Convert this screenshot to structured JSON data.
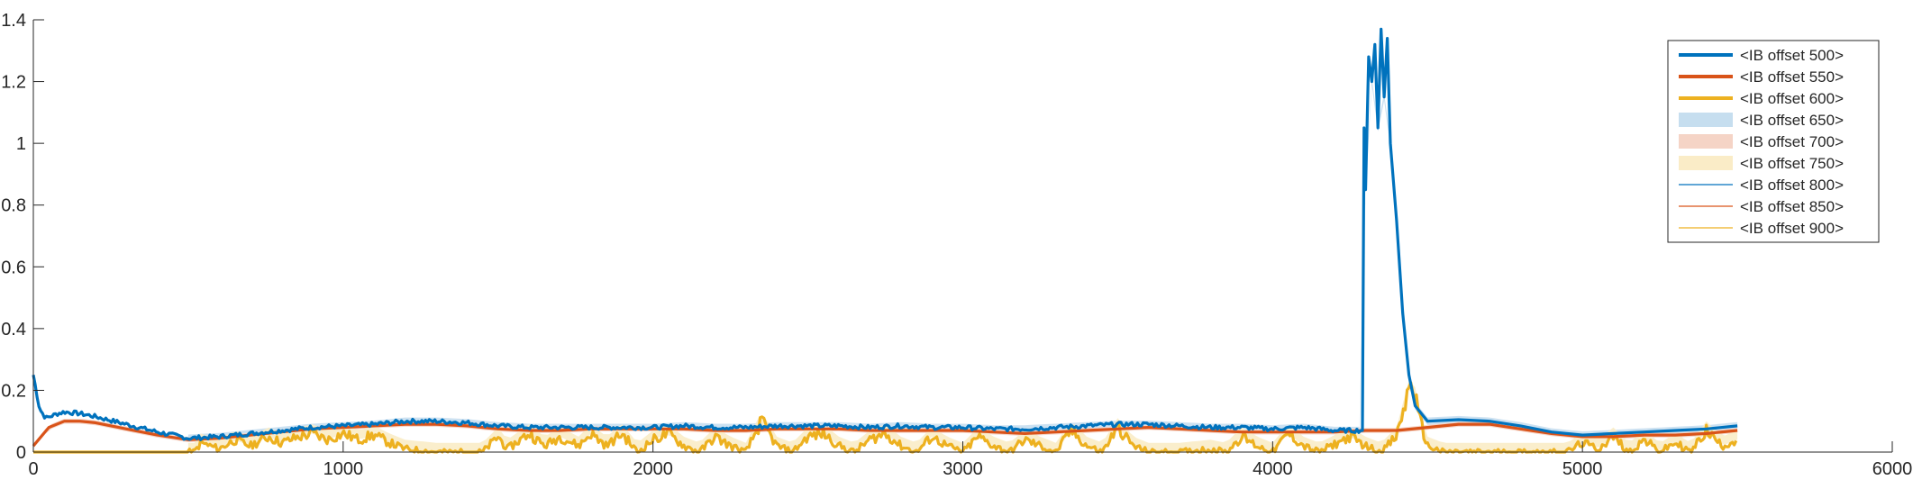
{
  "chart_data": {
    "type": "line",
    "title": "",
    "xlabel": "",
    "ylabel": "",
    "xlim": [
      0,
      6000
    ],
    "ylim": [
      0,
      1.4
    ],
    "xticks": [
      0,
      1000,
      2000,
      3000,
      4000,
      5000,
      6000
    ],
    "yticks": [
      0,
      0.2,
      0.4,
      0.6,
      0.8,
      1,
      1.2,
      1.4
    ],
    "xtick_labels": [
      "0",
      "1000",
      "2000",
      "3000",
      "4000",
      "5000",
      "6000"
    ],
    "ytick_labels": [
      "0",
      "0.2",
      "0.4",
      "0.6",
      "0.8",
      "1",
      "1.2",
      "1.4"
    ],
    "grid": false,
    "legend_position": "top-right",
    "series": [
      {
        "name": "<IB offset 500>",
        "color": "#0072BD",
        "style": "thick-line",
        "points": [
          [
            0,
            0.25
          ],
          [
            20,
            0.14
          ],
          [
            40,
            0.11
          ],
          [
            80,
            0.125
          ],
          [
            100,
            0.13
          ],
          [
            150,
            0.125
          ],
          [
            200,
            0.115
          ],
          [
            300,
            0.09
          ],
          [
            400,
            0.065
          ],
          [
            500,
            0.045
          ],
          [
            600,
            0.05
          ],
          [
            700,
            0.06
          ],
          [
            800,
            0.07
          ],
          [
            900,
            0.08
          ],
          [
            1000,
            0.085
          ],
          [
            1100,
            0.09
          ],
          [
            1200,
            0.1
          ],
          [
            1300,
            0.1
          ],
          [
            1400,
            0.095
          ],
          [
            1500,
            0.085
          ],
          [
            1600,
            0.08
          ],
          [
            1700,
            0.08
          ],
          [
            1800,
            0.08
          ],
          [
            1900,
            0.08
          ],
          [
            2000,
            0.08
          ],
          [
            2100,
            0.085
          ],
          [
            2200,
            0.08
          ],
          [
            2300,
            0.08
          ],
          [
            2400,
            0.085
          ],
          [
            2500,
            0.085
          ],
          [
            2600,
            0.085
          ],
          [
            2700,
            0.08
          ],
          [
            2800,
            0.085
          ],
          [
            2900,
            0.08
          ],
          [
            3000,
            0.08
          ],
          [
            3100,
            0.075
          ],
          [
            3200,
            0.075
          ],
          [
            3300,
            0.08
          ],
          [
            3400,
            0.085
          ],
          [
            3500,
            0.09
          ],
          [
            3600,
            0.09
          ],
          [
            3700,
            0.085
          ],
          [
            3800,
            0.08
          ],
          [
            3900,
            0.08
          ],
          [
            4000,
            0.075
          ],
          [
            4100,
            0.08
          ],
          [
            4200,
            0.07
          ],
          [
            4290,
            0.07
          ],
          [
            4295,
            1.05
          ],
          [
            4300,
            0.85
          ],
          [
            4310,
            1.28
          ],
          [
            4320,
            1.2
          ],
          [
            4330,
            1.32
          ],
          [
            4340,
            1.05
          ],
          [
            4350,
            1.37
          ],
          [
            4360,
            1.15
          ],
          [
            4370,
            1.34
          ],
          [
            4380,
            1.0
          ],
          [
            4400,
            0.75
          ],
          [
            4420,
            0.45
          ],
          [
            4440,
            0.25
          ],
          [
            4460,
            0.15
          ],
          [
            4500,
            0.1
          ],
          [
            4600,
            0.105
          ],
          [
            4700,
            0.1
          ],
          [
            4800,
            0.085
          ],
          [
            4900,
            0.065
          ],
          [
            5000,
            0.055
          ],
          [
            5100,
            0.06
          ],
          [
            5200,
            0.065
          ],
          [
            5300,
            0.07
          ],
          [
            5400,
            0.075
          ],
          [
            5500,
            0.085
          ]
        ]
      },
      {
        "name": "<IB offset 550>",
        "color": "#D95319",
        "style": "thick-line",
        "points": [
          [
            0,
            0.02
          ],
          [
            50,
            0.08
          ],
          [
            100,
            0.1
          ],
          [
            150,
            0.1
          ],
          [
            200,
            0.095
          ],
          [
            300,
            0.075
          ],
          [
            400,
            0.055
          ],
          [
            500,
            0.04
          ],
          [
            600,
            0.045
          ],
          [
            700,
            0.055
          ],
          [
            800,
            0.065
          ],
          [
            900,
            0.075
          ],
          [
            1000,
            0.08
          ],
          [
            1100,
            0.085
          ],
          [
            1200,
            0.09
          ],
          [
            1300,
            0.09
          ],
          [
            1400,
            0.085
          ],
          [
            1500,
            0.075
          ],
          [
            1600,
            0.07
          ],
          [
            1700,
            0.07
          ],
          [
            1800,
            0.075
          ],
          [
            1900,
            0.075
          ],
          [
            2000,
            0.075
          ],
          [
            2100,
            0.075
          ],
          [
            2200,
            0.07
          ],
          [
            2300,
            0.07
          ],
          [
            2400,
            0.075
          ],
          [
            2500,
            0.075
          ],
          [
            2600,
            0.075
          ],
          [
            2700,
            0.07
          ],
          [
            2800,
            0.07
          ],
          [
            2900,
            0.07
          ],
          [
            3000,
            0.07
          ],
          [
            3100,
            0.065
          ],
          [
            3200,
            0.06
          ],
          [
            3300,
            0.065
          ],
          [
            3400,
            0.07
          ],
          [
            3500,
            0.075
          ],
          [
            3600,
            0.08
          ],
          [
            3700,
            0.075
          ],
          [
            3800,
            0.07
          ],
          [
            3900,
            0.065
          ],
          [
            4000,
            0.065
          ],
          [
            4100,
            0.065
          ],
          [
            4200,
            0.065
          ],
          [
            4300,
            0.07
          ],
          [
            4400,
            0.07
          ],
          [
            4500,
            0.08
          ],
          [
            4600,
            0.09
          ],
          [
            4700,
            0.09
          ],
          [
            4800,
            0.075
          ],
          [
            4900,
            0.06
          ],
          [
            5000,
            0.05
          ],
          [
            5100,
            0.05
          ],
          [
            5200,
            0.055
          ],
          [
            5300,
            0.055
          ],
          [
            5400,
            0.06
          ],
          [
            5500,
            0.07
          ]
        ]
      },
      {
        "name": "<IB offset 600>",
        "color": "#EDB120",
        "style": "thick-line",
        "points": [
          [
            0,
            0.0
          ],
          [
            400,
            0.0
          ],
          [
            520,
            0.0
          ],
          [
            540,
            0.03
          ],
          [
            600,
            0.01
          ],
          [
            650,
            0.04
          ],
          [
            700,
            0.02
          ],
          [
            760,
            0.05
          ],
          [
            800,
            0.03
          ],
          [
            860,
            0.05
          ],
          [
            900,
            0.06
          ],
          [
            950,
            0.04
          ],
          [
            1000,
            0.06
          ],
          [
            1050,
            0.04
          ],
          [
            1100,
            0.055
          ],
          [
            1150,
            0.03
          ],
          [
            1200,
            0.01
          ],
          [
            1300,
            0.0
          ],
          [
            1450,
            0.0
          ],
          [
            1500,
            0.05
          ],
          [
            1530,
            0.01
          ],
          [
            1600,
            0.06
          ],
          [
            1650,
            0.02
          ],
          [
            1700,
            0.05
          ],
          [
            1760,
            0.02
          ],
          [
            1800,
            0.06
          ],
          [
            1850,
            0.02
          ],
          [
            1900,
            0.06
          ],
          [
            1950,
            0.0
          ],
          [
            2000,
            0.04
          ],
          [
            2050,
            0.06
          ],
          [
            2100,
            0.02
          ],
          [
            2150,
            0.0
          ],
          [
            2200,
            0.05
          ],
          [
            2250,
            0.02
          ],
          [
            2300,
            0.0
          ],
          [
            2350,
            0.1
          ],
          [
            2400,
            0.02
          ],
          [
            2450,
            0.0
          ],
          [
            2500,
            0.05
          ],
          [
            2550,
            0.06
          ],
          [
            2600,
            0.02
          ],
          [
            2650,
            0.0
          ],
          [
            2700,
            0.04
          ],
          [
            2750,
            0.06
          ],
          [
            2800,
            0.02
          ],
          [
            2850,
            0.0
          ],
          [
            2900,
            0.05
          ],
          [
            2950,
            0.02
          ],
          [
            3000,
            0.0
          ],
          [
            3050,
            0.05
          ],
          [
            3100,
            0.02
          ],
          [
            3150,
            0.0
          ],
          [
            3200,
            0.04
          ],
          [
            3250,
            0.02
          ],
          [
            3300,
            0.0
          ],
          [
            3350,
            0.07
          ],
          [
            3400,
            0.02
          ],
          [
            3450,
            0.0
          ],
          [
            3500,
            0.08
          ],
          [
            3550,
            0.02
          ],
          [
            3600,
            0.0
          ],
          [
            3700,
            0.0
          ],
          [
            3800,
            0.01
          ],
          [
            3850,
            0.0
          ],
          [
            3900,
            0.05
          ],
          [
            3950,
            0.02
          ],
          [
            4000,
            0.0
          ],
          [
            4050,
            0.06
          ],
          [
            4100,
            0.02
          ],
          [
            4150,
            0.0
          ],
          [
            4250,
            0.05
          ],
          [
            4300,
            0.02
          ],
          [
            4350,
            0.0
          ],
          [
            4400,
            0.05
          ],
          [
            4450,
            0.24
          ],
          [
            4470,
            0.12
          ],
          [
            4500,
            0.02
          ],
          [
            4550,
            0.0
          ],
          [
            4800,
            0.0
          ],
          [
            4950,
            0.0
          ],
          [
            5000,
            0.03
          ],
          [
            5050,
            0.01
          ],
          [
            5100,
            0.05
          ],
          [
            5150,
            0.0
          ],
          [
            5200,
            0.04
          ],
          [
            5250,
            0.0
          ],
          [
            5300,
            0.03
          ],
          [
            5350,
            0.0
          ],
          [
            5400,
            0.07
          ],
          [
            5450,
            0.02
          ],
          [
            5500,
            0.04
          ]
        ]
      },
      {
        "name": "<IB offset 650>",
        "color": "#C6DEEF",
        "style": "band"
      },
      {
        "name": "<IB offset 700>",
        "color": "#F5D4C6",
        "style": "band"
      },
      {
        "name": "<IB offset 750>",
        "color": "#FAECC7",
        "style": "band"
      },
      {
        "name": "<IB offset 800>",
        "color": "#0072BD",
        "style": "thin-line"
      },
      {
        "name": "<IB offset 850>",
        "color": "#D95319",
        "style": "thin-line"
      },
      {
        "name": "<IB offset 900>",
        "color": "#EDB120",
        "style": "thin-line"
      }
    ]
  }
}
